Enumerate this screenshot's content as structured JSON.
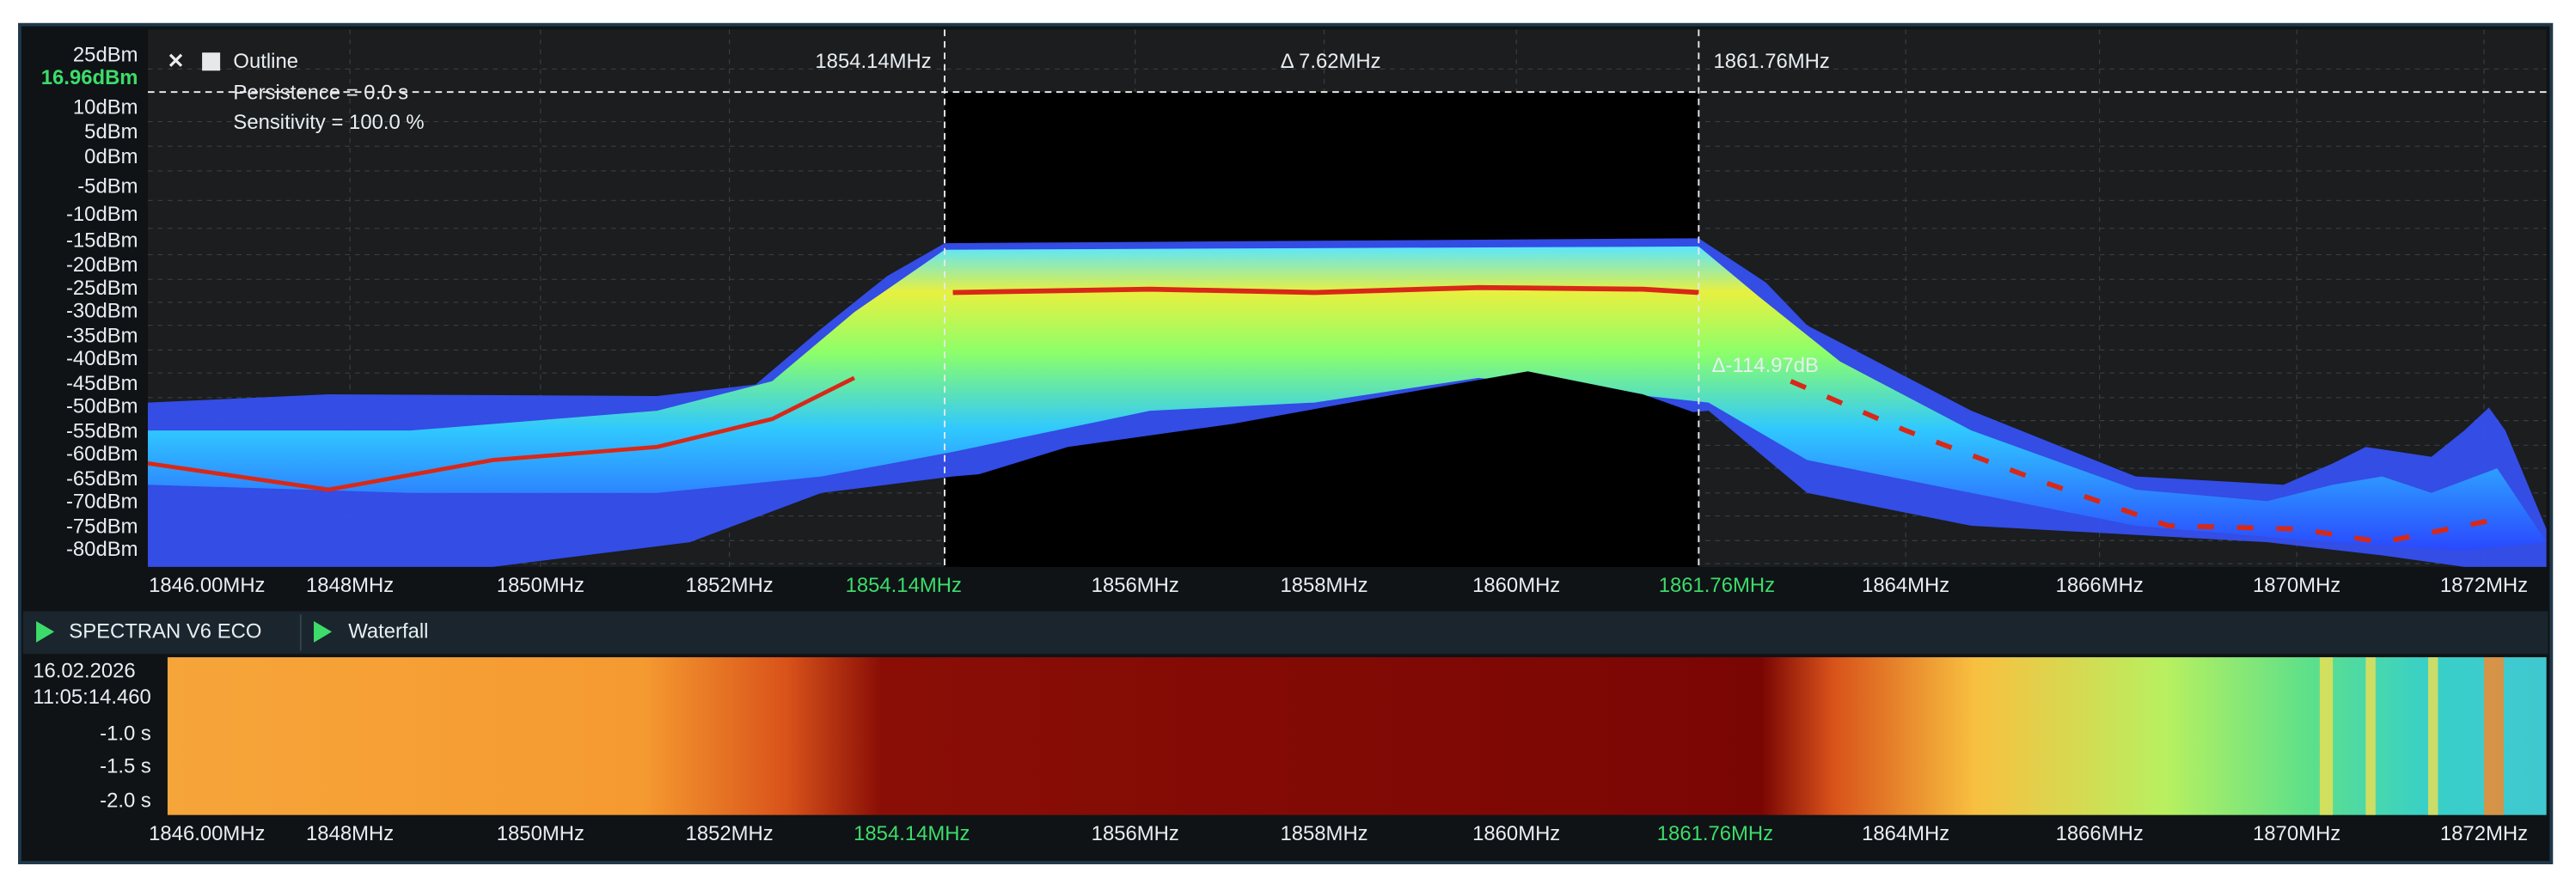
{
  "spectrum": {
    "toolbar": {
      "outline": "Outline",
      "persistence": "Persistence = 0.0 s",
      "sensitivity": "Sensitivity = 100.0 %"
    },
    "level_marker": "16.96dBm",
    "y_labels": [
      "25dBm",
      "10dBm",
      "5dBm",
      "0dBm",
      "-5dBm",
      "-10dBm",
      "-15dBm",
      "-20dBm",
      "-25dBm",
      "-30dBm",
      "-35dBm",
      "-40dBm",
      "-45dBm",
      "-50dBm",
      "-55dBm",
      "-60dBm",
      "-65dBm",
      "-70dBm",
      "-75dBm",
      "-80dBm"
    ],
    "x_labels": [
      "1846.00MHz",
      "1848MHz",
      "1850MHz",
      "1852MHz",
      "1854.14MHz",
      "1856MHz",
      "1858MHz",
      "1860MHz",
      "1861.76MHz",
      "1864MHz",
      "1866MHz",
      "1870MHz",
      "1872MHz"
    ],
    "marker_1": "1854.14MHz",
    "marker_2": "1861.76MHz",
    "delta_frequency": "Δ 7.62MHz",
    "delta_level": "Δ-114.97dB"
  },
  "waterfall": {
    "device": "SPECTRAN V6 ECO",
    "title": "Waterfall",
    "date": "16.02.2026",
    "time": "11:05:14.460",
    "y_labels": [
      "-1.0 s",
      "-1.5 s",
      "-2.0 s"
    ],
    "x_labels": [
      "1846.00MHz",
      "1848MHz",
      "1850MHz",
      "1852MHz",
      "1854.14MHz",
      "1856MHz",
      "1858MHz",
      "1860MHz",
      "1861.76MHz",
      "1864MHz",
      "1866MHz",
      "1870MHz",
      "1872MHz"
    ]
  }
}
